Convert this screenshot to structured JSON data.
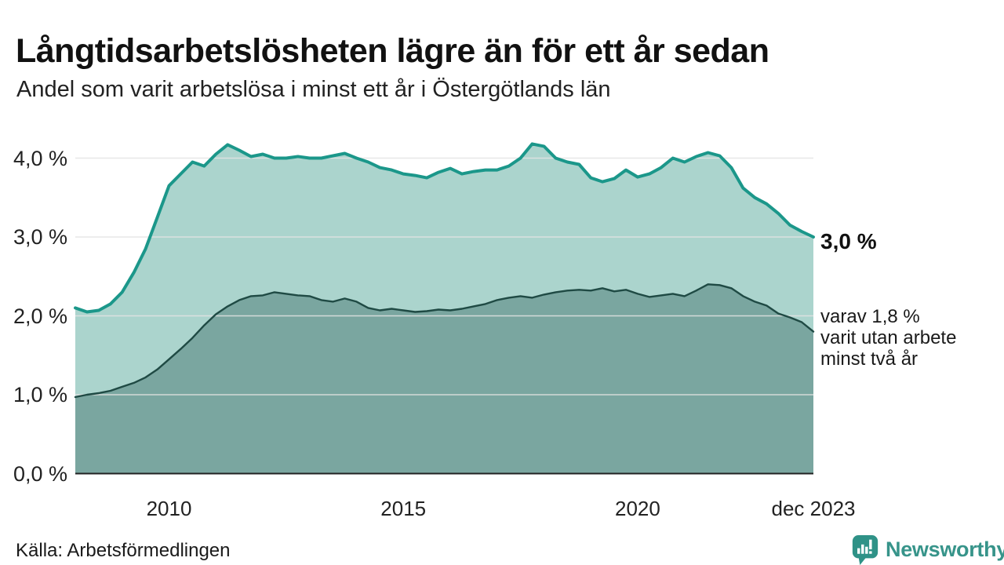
{
  "header": {
    "title": "Långtidsarbetslösheten lägre än för ett år sedan",
    "subtitle": "Andel som varit arbetslösa i minst ett år i Östergötlands län"
  },
  "annotations": {
    "latest_value": "3,0 %",
    "subseries_note": "varav 1,8 %\nvarit utan arbete\nminst två år"
  },
  "footer": {
    "source": "Källa: Arbetsförmedlingen",
    "brand": "Newsworthy"
  },
  "theme": {
    "background": "#ffffff",
    "text": "#1a1a1a",
    "grid": "#e3e3e3",
    "axis_line": "#222222",
    "brand_teal": "#37948a"
  },
  "chart_data": {
    "type": "area",
    "title": "Långtidsarbetslösheten lägre än för ett år sedan",
    "subtitle": "Andel som varit arbetslösa i minst ett år i Östergötlands län",
    "xlabel": "",
    "ylabel": "",
    "ylim": [
      0,
      4.35
    ],
    "grid": "horizontal",
    "legend_position": "none",
    "x": [
      2008,
      2008.25,
      2008.5,
      2008.75,
      2009,
      2009.25,
      2009.5,
      2009.75,
      2010,
      2010.25,
      2010.5,
      2010.75,
      2011,
      2011.25,
      2011.5,
      2011.75,
      2012,
      2012.25,
      2012.5,
      2012.75,
      2013,
      2013.25,
      2013.5,
      2013.75,
      2014,
      2014.25,
      2014.5,
      2014.75,
      2015,
      2015.25,
      2015.5,
      2015.75,
      2016,
      2016.25,
      2016.5,
      2016.75,
      2017,
      2017.25,
      2017.5,
      2017.75,
      2018,
      2018.25,
      2018.5,
      2018.75,
      2019,
      2019.25,
      2019.5,
      2019.75,
      2020,
      2020.25,
      2020.5,
      2020.75,
      2021,
      2021.25,
      2021.5,
      2021.75,
      2022,
      2022.25,
      2022.5,
      2022.75,
      2023,
      2023.25,
      2023.5,
      2023.75
    ],
    "series": [
      {
        "name": "arbetslösa minst ett år",
        "end_label": "3,0 %",
        "line_color": "#1b978a",
        "fill_color": "#abd4cd",
        "line_width": 4,
        "values": [
          2.1,
          2.05,
          2.07,
          2.15,
          2.3,
          2.55,
          2.85,
          3.25,
          3.65,
          3.8,
          3.95,
          3.9,
          4.05,
          4.17,
          4.1,
          4.02,
          4.05,
          4.0,
          4.0,
          4.02,
          4.0,
          4.0,
          4.03,
          4.06,
          4.0,
          3.95,
          3.88,
          3.85,
          3.8,
          3.78,
          3.75,
          3.82,
          3.87,
          3.8,
          3.83,
          3.85,
          3.85,
          3.9,
          4.0,
          4.18,
          4.15,
          4.0,
          3.95,
          3.92,
          3.75,
          3.7,
          3.74,
          3.85,
          3.76,
          3.8,
          3.88,
          4.0,
          3.95,
          4.02,
          4.07,
          4.03,
          3.88,
          3.62,
          3.5,
          3.42,
          3.3,
          3.15,
          3.07,
          3.0
        ]
      },
      {
        "name": "arbetslösa minst två år",
        "end_label": "1,8 %",
        "line_color": "#1f4a44",
        "fill_color": "#7aa6a0",
        "line_width": 2.4,
        "values": [
          0.97,
          1.0,
          1.02,
          1.05,
          1.1,
          1.15,
          1.22,
          1.32,
          1.45,
          1.58,
          1.72,
          1.88,
          2.02,
          2.12,
          2.2,
          2.25,
          2.26,
          2.3,
          2.28,
          2.26,
          2.25,
          2.2,
          2.18,
          2.22,
          2.18,
          2.1,
          2.07,
          2.09,
          2.07,
          2.05,
          2.06,
          2.08,
          2.07,
          2.09,
          2.12,
          2.15,
          2.2,
          2.23,
          2.25,
          2.23,
          2.27,
          2.3,
          2.32,
          2.33,
          2.32,
          2.35,
          2.31,
          2.33,
          2.28,
          2.24,
          2.26,
          2.28,
          2.25,
          2.32,
          2.4,
          2.39,
          2.35,
          2.25,
          2.18,
          2.13,
          2.03,
          1.98,
          1.92,
          1.8
        ]
      }
    ],
    "yticks": [
      {
        "value": 4.0,
        "label": "4,0 %"
      },
      {
        "value": 3.0,
        "label": "3,0 %"
      },
      {
        "value": 2.0,
        "label": "2,0 %"
      },
      {
        "value": 1.0,
        "label": "1,0 %"
      },
      {
        "value": 0.0,
        "label": "0,0 %"
      }
    ],
    "xticks": [
      {
        "value": 2010,
        "label": "2010"
      },
      {
        "value": 2015,
        "label": "2015"
      },
      {
        "value": 2020,
        "label": "2020"
      },
      {
        "value": 2023.75,
        "label": "dec 2023"
      }
    ]
  }
}
